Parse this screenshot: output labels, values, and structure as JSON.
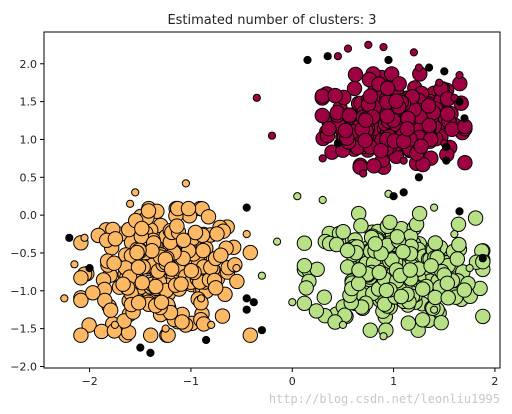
{
  "chart_data": {
    "type": "scatter",
    "title": "Estimated number of clusters: 3",
    "xlabel": "",
    "ylabel": "",
    "xlim": [
      -2.45,
      2.05
    ],
    "ylim": [
      -2.02,
      2.42
    ],
    "x_ticks": [
      -2,
      -1,
      0,
      1,
      2
    ],
    "x_tick_labels": [
      "−2",
      "−1",
      "0",
      "1",
      "2"
    ],
    "y_ticks": [
      -2.0,
      -1.5,
      -1.0,
      -0.5,
      0.0,
      0.5,
      1.0,
      1.5,
      2.0
    ],
    "y_tick_labels": [
      "−2.0",
      "−1.5",
      "−1.0",
      "−0.5",
      "0.0",
      "0.5",
      "1.0",
      "1.5",
      "2.0"
    ],
    "grid": false,
    "legend": "none",
    "series": [
      {
        "color": "#9e0142",
        "center": [
          1.0,
          1.25
        ],
        "spread": [
          0.32,
          0.28
        ],
        "count": 260,
        "points": [
          [
            0.75,
            2.25
          ],
          [
            0.55,
            2.2
          ],
          [
            0.9,
            2.22
          ],
          [
            1.25,
            1.95
          ],
          [
            1.45,
            1.75
          ],
          [
            1.6,
            1.55
          ],
          [
            1.5,
            0.95
          ],
          [
            1.1,
            0.72
          ],
          [
            0.7,
            0.55
          ],
          [
            0.3,
            0.75
          ],
          [
            -0.2,
            1.05
          ],
          [
            -0.35,
            1.55
          ],
          [
            0.45,
            2.1
          ],
          [
            1.2,
            2.15
          ],
          [
            1.65,
            1.85
          ]
        ]
      },
      {
        "color": "#fdb863",
        "center": [
          -1.25,
          -0.75
        ],
        "spread": [
          0.38,
          0.38
        ],
        "count": 260,
        "points": [
          [
            -2.25,
            -1.1
          ],
          [
            -2.15,
            -0.65
          ],
          [
            -2.05,
            -0.3
          ],
          [
            -1.55,
            0.3
          ],
          [
            -1.05,
            0.42
          ],
          [
            -0.45,
            -0.25
          ],
          [
            -0.55,
            -0.7
          ],
          [
            -0.8,
            -1.45
          ],
          [
            -1.25,
            -1.5
          ],
          [
            -1.75,
            -1.45
          ],
          [
            -1.6,
            0.15
          ],
          [
            -0.9,
            -1.1
          ]
        ]
      },
      {
        "color": "#b8e186",
        "center": [
          1.0,
          -0.75
        ],
        "spread": [
          0.4,
          0.35
        ],
        "count": 260,
        "points": [
          [
            0.05,
            0.25
          ],
          [
            0.3,
            0.2
          ],
          [
            0.95,
            0.28
          ],
          [
            1.4,
            0.1
          ],
          [
            1.6,
            -0.25
          ],
          [
            1.75,
            -0.7
          ],
          [
            1.4,
            -1.25
          ],
          [
            0.9,
            -1.6
          ],
          [
            0.5,
            -1.45
          ],
          [
            0.0,
            -1.15
          ],
          [
            -0.3,
            -0.8
          ],
          [
            -0.15,
            -0.35
          ]
        ]
      },
      {
        "color": "#000000",
        "name": "",
        "count": 34,
        "points": [
          [
            -2.2,
            -0.3
          ],
          [
            -1.5,
            -1.75
          ],
          [
            -1.4,
            -1.82
          ],
          [
            -0.85,
            -1.65
          ],
          [
            -0.45,
            -1.25
          ],
          [
            -0.45,
            -1.1
          ],
          [
            -0.38,
            -1.15
          ],
          [
            -0.3,
            -1.52
          ],
          [
            -0.45,
            0.1
          ],
          [
            0.35,
            2.1
          ],
          [
            0.15,
            2.05
          ],
          [
            0.95,
            2.05
          ],
          [
            1.35,
            1.95
          ],
          [
            1.5,
            1.9
          ],
          [
            1.65,
            1.5
          ],
          [
            1.7,
            1.28
          ],
          [
            1.52,
            0.9
          ],
          [
            1.52,
            0.72
          ],
          [
            1.25,
            0.5
          ],
          [
            1.0,
            0.25
          ],
          [
            1.65,
            0.05
          ],
          [
            1.88,
            -0.57
          ],
          [
            1.1,
            0.3
          ],
          [
            -2.0,
            -0.7
          ],
          [
            0.45,
            0.95
          ]
        ]
      }
    ]
  },
  "watermark": {
    "text": "http://blog.csdn.net/leonliu1995"
  }
}
